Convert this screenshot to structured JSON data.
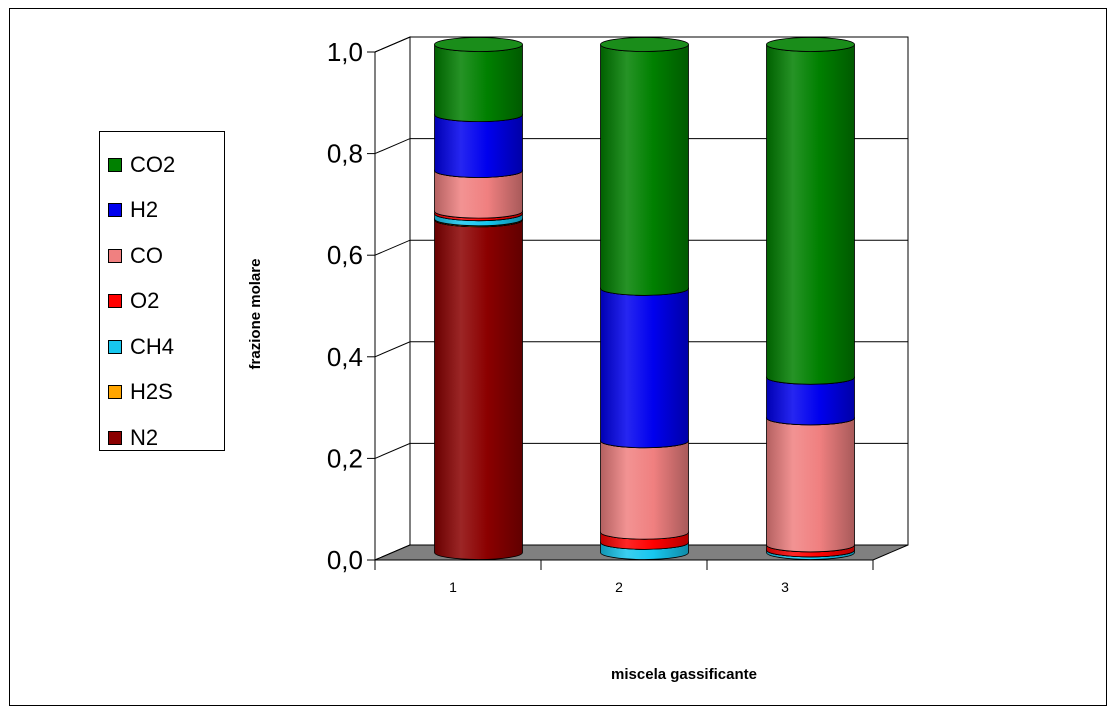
{
  "chart_data": {
    "type": "bar",
    "stacked": true,
    "style": "3d-cylinder",
    "xlabel": "miscela gassificante",
    "ylabel": "frazione molare",
    "ylim": [
      0,
      1
    ],
    "y_ticks": [
      "0,0",
      "0,2",
      "0,4",
      "0,6",
      "0,8",
      "1,0"
    ],
    "categories": [
      "1",
      "2",
      "3"
    ],
    "legend_position": "left",
    "series": [
      {
        "name": "N2",
        "color": "#8b0000",
        "values": [
          0.655,
          0.0,
          0.0
        ]
      },
      {
        "name": "H2S",
        "color": "#ffa500",
        "values": [
          0.002,
          0.0,
          0.0
        ]
      },
      {
        "name": "CH4",
        "color": "#17c7ef",
        "values": [
          0.01,
          0.02,
          0.005
        ]
      },
      {
        "name": "O2",
        "color": "#ff0000",
        "values": [
          0.005,
          0.02,
          0.01
        ]
      },
      {
        "name": "CO",
        "color": "#f08080",
        "values": [
          0.08,
          0.18,
          0.25
        ]
      },
      {
        "name": "H2",
        "color": "#0000ee",
        "values": [
          0.11,
          0.3,
          0.08
        ]
      },
      {
        "name": "CO2",
        "color": "#008000",
        "values": [
          0.138,
          0.48,
          0.655
        ]
      }
    ]
  }
}
